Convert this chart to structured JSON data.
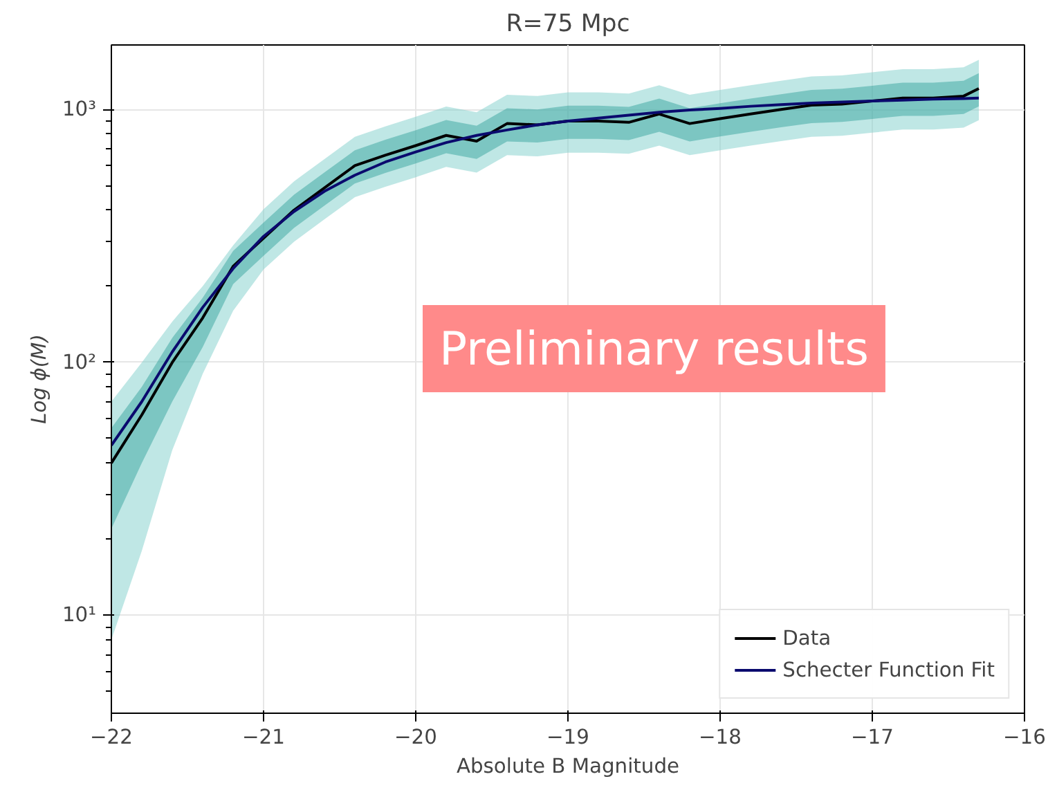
{
  "chart_data": {
    "type": "line",
    "title": "R=75 Mpc",
    "xlabel": "Absolute B Magnitude",
    "ylabel": "Log ϕ(M)",
    "x": [
      -22,
      -21.8,
      -21.6,
      -21.4,
      -21.2,
      -21.0,
      -20.8,
      -20.6,
      -20.4,
      -20.2,
      -20.0,
      -19.8,
      -19.6,
      -19.4,
      -19.2,
      -19.0,
      -18.8,
      -18.6,
      -18.4,
      -18.2,
      -18.0,
      -17.8,
      -17.6,
      -17.4,
      -17.2,
      -17.0,
      -16.8,
      -16.6,
      -16.4,
      -16.3
    ],
    "series": [
      {
        "name": "Data",
        "color": "#000000",
        "values": [
          40,
          62,
          100,
          150,
          240,
          310,
          400,
          490,
          600,
          660,
          720,
          790,
          750,
          880,
          870,
          900,
          900,
          890,
          960,
          880,
          920,
          960,
          1000,
          1040,
          1050,
          1080,
          1110,
          1110,
          1130,
          1210
        ],
        "lower": [
          22,
          40,
          70,
          115,
          204,
          264,
          340,
          417,
          510,
          561,
          612,
          672,
          638,
          748,
          740,
          765,
          765,
          757,
          816,
          748,
          782,
          816,
          850,
          884,
          893,
          918,
          944,
          944,
          961,
          1029
        ],
        "upper": [
          55,
          80,
          125,
          180,
          276,
          357,
          460,
          564,
          690,
          759,
          828,
          909,
          863,
          1012,
          1001,
          1035,
          1035,
          1024,
          1104,
          1012,
          1058,
          1104,
          1150,
          1196,
          1208,
          1242,
          1277,
          1277,
          1300,
          1392
        ]
      },
      {
        "name": "Schecter Function Fit",
        "color": "#0a0a6e",
        "values": [
          47,
          70,
          110,
          165,
          235,
          315,
          395,
          475,
          550,
          620,
          680,
          740,
          790,
          830,
          870,
          900,
          925,
          950,
          975,
          995,
          1010,
          1030,
          1045,
          1060,
          1070,
          1080,
          1090,
          1100,
          1105,
          1110
        ],
        "lower": [
          8,
          18,
          45,
          90,
          160,
          233,
          300,
          368,
          450,
          495,
          540,
          593,
          563,
          660,
          653,
          675,
          675,
          668,
          720,
          660,
          690,
          720,
          750,
          780,
          788,
          810,
          833,
          833,
          848,
          908
        ],
        "upper": [
          70,
          100,
          145,
          200,
          290,
          403,
          520,
          637,
          780,
          858,
          936,
          1027,
          975,
          1144,
          1131,
          1170,
          1170,
          1157,
          1248,
          1144,
          1196,
          1248,
          1300,
          1352,
          1365,
          1404,
          1443,
          1443,
          1469,
          1573
        ]
      }
    ],
    "xlim": [
      -22,
      -16
    ],
    "xticks": [
      -22,
      -21,
      -20,
      -19,
      -18,
      -17,
      -16
    ],
    "ylim": [
      4.1,
      1800
    ],
    "yticks": [
      {
        "value": 10,
        "label": "10¹"
      },
      {
        "value": 100,
        "label": "10²"
      },
      {
        "value": 1000,
        "label": "10³"
      }
    ],
    "log": "y",
    "grid": true,
    "legend": "bottom right",
    "line_style": "solid",
    "annotations": [
      "Preliminary results"
    ]
  }
}
